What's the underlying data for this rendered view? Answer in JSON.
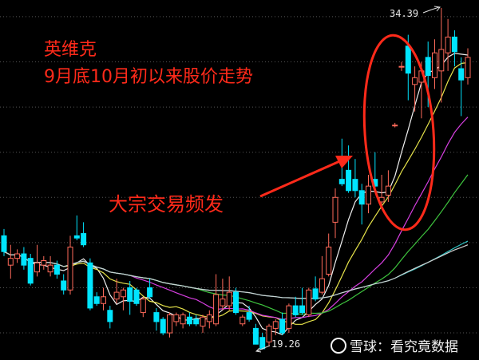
{
  "chart_data": {
    "type": "candlestick",
    "title": "英维克",
    "subtitle": "9月底10月初以来股价走势",
    "annotation": "大宗交易频发",
    "high_label": "34.39",
    "low_label": "19.26",
    "ylim": [
      18.8,
      34.74
    ],
    "grid": true,
    "gridlines": [
      20,
      22,
      24,
      26,
      28,
      30,
      32,
      34
    ],
    "colors": {
      "up": "#ff6a5a",
      "down": "#00e5ff",
      "annotation": "#ff2a1a",
      "background": "#000000"
    },
    "moving_averages": [
      {
        "period": 5,
        "color": "#f0f0f0"
      },
      {
        "period": 10,
        "color": "#e6e34a"
      },
      {
        "period": 20,
        "color": "#d63fe0"
      },
      {
        "period": 30,
        "color": "#3ec43e"
      },
      {
        "period": 60,
        "color": "#2ec4c4"
      },
      {
        "period": 120,
        "color": "#cfcfcf"
      }
    ],
    "ohlc": [
      [
        24.3,
        24.6,
        23.4,
        23.6
      ],
      [
        23.0,
        23.9,
        22.4,
        23.3
      ],
      [
        23.3,
        23.7,
        23.1,
        23.5
      ],
      [
        23.5,
        23.8,
        22.8,
        23.0
      ],
      [
        23.3,
        23.5,
        22.1,
        22.2
      ],
      [
        22.7,
        23.9,
        22.5,
        23.1
      ],
      [
        23.0,
        23.4,
        22.8,
        23.2
      ],
      [
        22.7,
        23.4,
        22.5,
        23.0
      ],
      [
        23.0,
        23.2,
        22.4,
        22.6
      ],
      [
        22.3,
        22.6,
        21.7,
        21.9
      ],
      [
        21.9,
        24.3,
        21.7,
        23.8
      ],
      [
        24.3,
        25.2,
        24.1,
        24.2
      ],
      [
        24.4,
        24.9,
        23.8,
        23.9
      ],
      [
        23.1,
        23.3,
        21.0,
        21.1
      ],
      [
        21.6,
        21.8,
        21.2,
        21.3
      ],
      [
        21.3,
        22.0,
        21.0,
        21.6
      ],
      [
        21.0,
        21.2,
        20.2,
        20.5
      ],
      [
        21.5,
        22.4,
        21.3,
        21.8
      ],
      [
        21.6,
        22.0,
        21.0,
        21.9
      ],
      [
        22.0,
        22.3,
        20.8,
        21.4
      ],
      [
        21.9,
        22.0,
        21.2,
        21.3
      ],
      [
        20.9,
        21.6,
        20.7,
        21.5
      ],
      [
        22.0,
        22.4,
        21.5,
        21.6
      ],
      [
        20.9,
        21.1,
        20.1,
        20.5
      ],
      [
        20.6,
        20.7,
        19.9,
        20.0
      ],
      [
        20.0,
        20.9,
        19.8,
        20.8
      ],
      [
        20.5,
        20.9,
        20.3,
        20.8
      ],
      [
        20.4,
        20.9,
        20.2,
        20.8
      ],
      [
        20.7,
        20.9,
        20.3,
        20.4
      ],
      [
        20.6,
        20.8,
        20.3,
        20.4
      ],
      [
        20.3,
        20.8,
        20.0,
        20.7
      ],
      [
        20.5,
        21.0,
        20.2,
        20.8
      ],
      [
        20.4,
        22.6,
        20.3,
        21.7
      ],
      [
        21.2,
        22.4,
        21.0,
        21.5
      ],
      [
        21.2,
        22.5,
        21.0,
        21.8
      ],
      [
        21.8,
        22.0,
        20.8,
        20.9
      ],
      [
        20.4,
        20.8,
        20.3,
        20.7
      ],
      [
        20.9,
        21.2,
        20.5,
        20.6
      ],
      [
        20.2,
        20.4,
        19.5,
        19.5
      ],
      [
        19.8,
        20.0,
        19.26,
        19.3
      ],
      [
        19.6,
        20.4,
        19.4,
        20.3
      ],
      [
        20.2,
        20.6,
        19.9,
        20.5
      ],
      [
        20.6,
        20.9,
        19.9,
        20.0
      ],
      [
        20.2,
        21.3,
        20.0,
        21.2
      ],
      [
        21.2,
        21.6,
        20.7,
        20.8
      ],
      [
        21.2,
        22.0,
        20.8,
        20.9
      ],
      [
        20.8,
        22.0,
        20.7,
        21.9
      ],
      [
        21.95,
        22.5,
        21.4,
        21.5
      ],
      [
        21.8,
        23.4,
        21.7,
        22.4
      ],
      [
        22.6,
        24.4,
        22.5,
        23.8
      ],
      [
        24.9,
        26.4,
        24.2,
        26.0
      ],
      [
        26.8,
        28.6,
        26.5,
        26.6
      ],
      [
        27.2,
        28.3,
        26.2,
        26.3
      ],
      [
        26.8,
        27.7,
        26.0,
        26.3
      ],
      [
        26.3,
        26.6,
        24.8,
        25.7
      ],
      [
        25.7,
        27.0,
        25.3,
        26.5
      ],
      [
        26.8,
        28.0,
        26.3,
        26.5
      ],
      [
        25.8,
        27.0,
        25.6,
        26.0
      ],
      [
        26.1,
        27.2,
        25.8,
        26.5
      ],
      [
        29.2,
        29.3,
        29.1,
        29.2
      ],
      [
        31.8,
        32.0,
        31.6,
        31.8
      ],
      [
        32.7,
        33.2,
        30.3,
        31.5
      ],
      [
        31.0,
        31.8,
        29.8,
        31.3
      ],
      [
        31.1,
        32.0,
        29.5,
        31.6
      ],
      [
        32.2,
        32.9,
        30.0,
        31.4
      ],
      [
        31.3,
        33.0,
        30.8,
        32.4
      ],
      [
        31.6,
        34.39,
        30.2,
        32.55
      ],
      [
        32.4,
        33.9,
        31.6,
        33.1
      ],
      [
        33.1,
        33.4,
        31.8,
        32.45
      ],
      [
        31.7,
        32.2,
        29.6,
        31.2
      ],
      [
        31.3,
        32.6,
        31.0,
        32.2
      ]
    ]
  },
  "watermark": {
    "logo": "雪",
    "text": "雪球：看究竟数据"
  }
}
